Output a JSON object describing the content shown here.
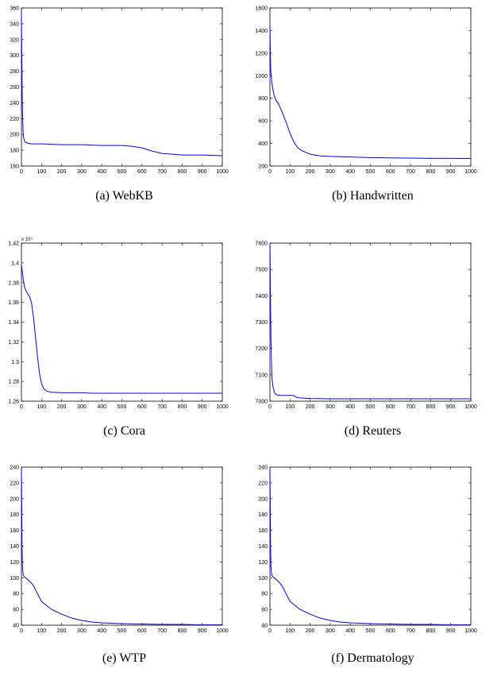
{
  "chart_data": [
    {
      "type": "line",
      "caption": "(a) WebKB",
      "xlim": [
        0,
        1000
      ],
      "ylim": [
        160,
        360
      ],
      "xticks": [
        0,
        100,
        200,
        300,
        400,
        500,
        600,
        700,
        800,
        900,
        1000
      ],
      "yticks": [
        160,
        180,
        200,
        220,
        240,
        260,
        280,
        300,
        320,
        340,
        360
      ],
      "ytick_multiplier": "",
      "series_color": "#0000ff",
      "series": [
        {
          "x": [
            0,
            2,
            4,
            6,
            8,
            10,
            15,
            20,
            30,
            50,
            100,
            200,
            300,
            400,
            500,
            550,
            600,
            650,
            700,
            750,
            800,
            900,
            1000
          ],
          "y": [
            355,
            300,
            250,
            220,
            205,
            197,
            192,
            190,
            189,
            188,
            188,
            187,
            187,
            186,
            186,
            185,
            183,
            179,
            176,
            175,
            174,
            174,
            173
          ]
        }
      ]
    },
    {
      "type": "line",
      "caption": "(b) Handwritten",
      "xlim": [
        0,
        1000
      ],
      "ylim": [
        200,
        1600
      ],
      "xticks": [
        0,
        100,
        200,
        300,
        400,
        500,
        600,
        700,
        800,
        900,
        1000
      ],
      "yticks": [
        200,
        400,
        600,
        800,
        1000,
        1200,
        1400,
        1600
      ],
      "ytick_multiplier": "",
      "series_color": "#0000ff",
      "series": [
        {
          "x": [
            0,
            2,
            4,
            7,
            10,
            15,
            20,
            30,
            40,
            50,
            60,
            80,
            100,
            120,
            140,
            160,
            180,
            200,
            250,
            300,
            400,
            500,
            600,
            700,
            800,
            900,
            1000
          ],
          "y": [
            1450,
            1200,
            1050,
            980,
            930,
            880,
            830,
            780,
            760,
            720,
            680,
            590,
            490,
            410,
            360,
            335,
            320,
            305,
            290,
            285,
            280,
            275,
            272,
            270,
            268,
            268,
            267
          ]
        }
      ]
    },
    {
      "type": "line",
      "caption": "(c) Cora",
      "xlim": [
        0,
        1000
      ],
      "ylim": [
        1.26,
        1.42
      ],
      "xticks": [
        0,
        100,
        200,
        300,
        400,
        500,
        600,
        700,
        800,
        900,
        1000
      ],
      "yticks": [
        1.26,
        1.28,
        1.3,
        1.32,
        1.34,
        1.36,
        1.38,
        1.4,
        1.42
      ],
      "ytick_multiplier": "x 10⁴",
      "series_color": "#0000ff",
      "series": [
        {
          "x": [
            0,
            5,
            10,
            15,
            20,
            30,
            40,
            50,
            60,
            70,
            80,
            90,
            100,
            110,
            120,
            130,
            150,
            200,
            300,
            350,
            400,
            500,
            600,
            700,
            800,
            900,
            1000
          ],
          "y": [
            1.398,
            1.39,
            1.382,
            1.376,
            1.373,
            1.369,
            1.366,
            1.36,
            1.345,
            1.325,
            1.305,
            1.288,
            1.278,
            1.273,
            1.271,
            1.27,
            1.269,
            1.2685,
            1.2685,
            1.268,
            1.268,
            1.268,
            1.268,
            1.268,
            1.268,
            1.268,
            1.268
          ]
        }
      ]
    },
    {
      "type": "line",
      "caption": "(d) Reuters",
      "xlim": [
        0,
        1000
      ],
      "ylim": [
        7000,
        7600
      ],
      "xticks": [
        0,
        100,
        200,
        300,
        400,
        500,
        600,
        700,
        800,
        900,
        1000
      ],
      "yticks": [
        7000,
        7100,
        7200,
        7300,
        7400,
        7500,
        7600
      ],
      "ytick_multiplier": "",
      "series_color": "#0000ff",
      "series": [
        {
          "x": [
            0,
            2,
            4,
            6,
            8,
            10,
            15,
            20,
            25,
            30,
            50,
            80,
            110,
            120,
            130,
            150,
            200,
            300,
            500,
            700,
            1000
          ],
          "y": [
            7600,
            7450,
            7300,
            7200,
            7140,
            7090,
            7055,
            7040,
            7030,
            7025,
            7022,
            7022,
            7022,
            7021,
            7015,
            7012,
            7010,
            7009,
            7009,
            7009,
            7009
          ]
        }
      ]
    },
    {
      "type": "line",
      "caption": "(e) WTP",
      "xlim": [
        0,
        1000
      ],
      "ylim": [
        40,
        240
      ],
      "xticks": [
        0,
        100,
        200,
        300,
        400,
        500,
        600,
        700,
        800,
        900,
        1000
      ],
      "yticks": [
        40,
        60,
        80,
        100,
        120,
        140,
        160,
        180,
        200,
        220,
        240
      ],
      "ytick_multiplier": "",
      "series_color": "#0000ff",
      "series": [
        {
          "x": [
            0,
            2,
            3,
            5,
            8,
            12,
            20,
            40,
            60,
            80,
            100,
            150,
            200,
            250,
            300,
            350,
            400,
            500,
            600,
            700,
            800,
            900,
            1000
          ],
          "y": [
            240,
            180,
            140,
            115,
            104,
            102,
            100,
            96,
            90,
            80,
            70,
            60,
            54,
            49,
            46,
            44,
            43,
            42,
            41.5,
            41,
            41,
            40.5,
            40.5
          ]
        }
      ]
    },
    {
      "type": "line",
      "caption": "(f) Dermatology",
      "xlim": [
        0,
        1000
      ],
      "ylim": [
        40,
        240
      ],
      "xticks": [
        0,
        100,
        200,
        300,
        400,
        500,
        600,
        700,
        800,
        900,
        1000
      ],
      "yticks": [
        40,
        60,
        80,
        100,
        120,
        140,
        160,
        180,
        200,
        220,
        240
      ],
      "ytick_multiplier": "",
      "series_color": "#0000ff",
      "series": [
        {
          "x": [
            0,
            2,
            3,
            5,
            8,
            12,
            20,
            40,
            60,
            80,
            100,
            150,
            200,
            250,
            300,
            350,
            400,
            500,
            600,
            700,
            800,
            900,
            1000
          ],
          "y": [
            240,
            180,
            140,
            115,
            104,
            102,
            100,
            96,
            90,
            80,
            70,
            60,
            54,
            49,
            46,
            44,
            43,
            42,
            41.5,
            41,
            41,
            40.5,
            40.5
          ]
        }
      ]
    }
  ]
}
